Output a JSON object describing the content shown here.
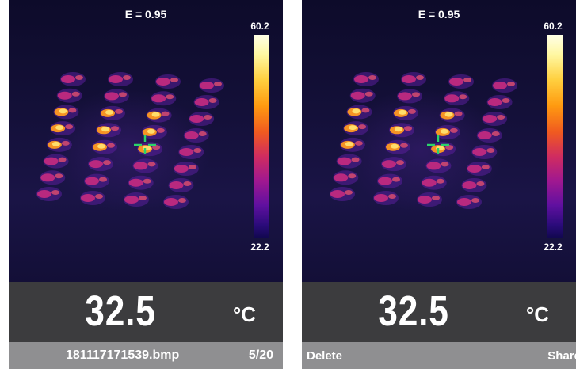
{
  "screens": [
    {
      "emissivity": "E = 0.95",
      "scale_max": "60.2",
      "scale_min": "22.2",
      "temperature": "32.5",
      "unit": "°C",
      "file_name": "181117171539.bmp",
      "file_index": "5/20"
    },
    {
      "emissivity": "E = 0.95",
      "scale_max": "60.2",
      "scale_min": "22.2",
      "temperature": "32.5",
      "unit": "°C",
      "left_key": "Delete",
      "right_key": "Share"
    }
  ],
  "colors": {
    "background": "#0c0a26",
    "reading_panel": "#3c3c3e",
    "bottom_bar": "#8f8f91",
    "crosshair": "#2bd36a"
  },
  "icons": [
    "crosshair-icon",
    "color-scale-bar"
  ]
}
